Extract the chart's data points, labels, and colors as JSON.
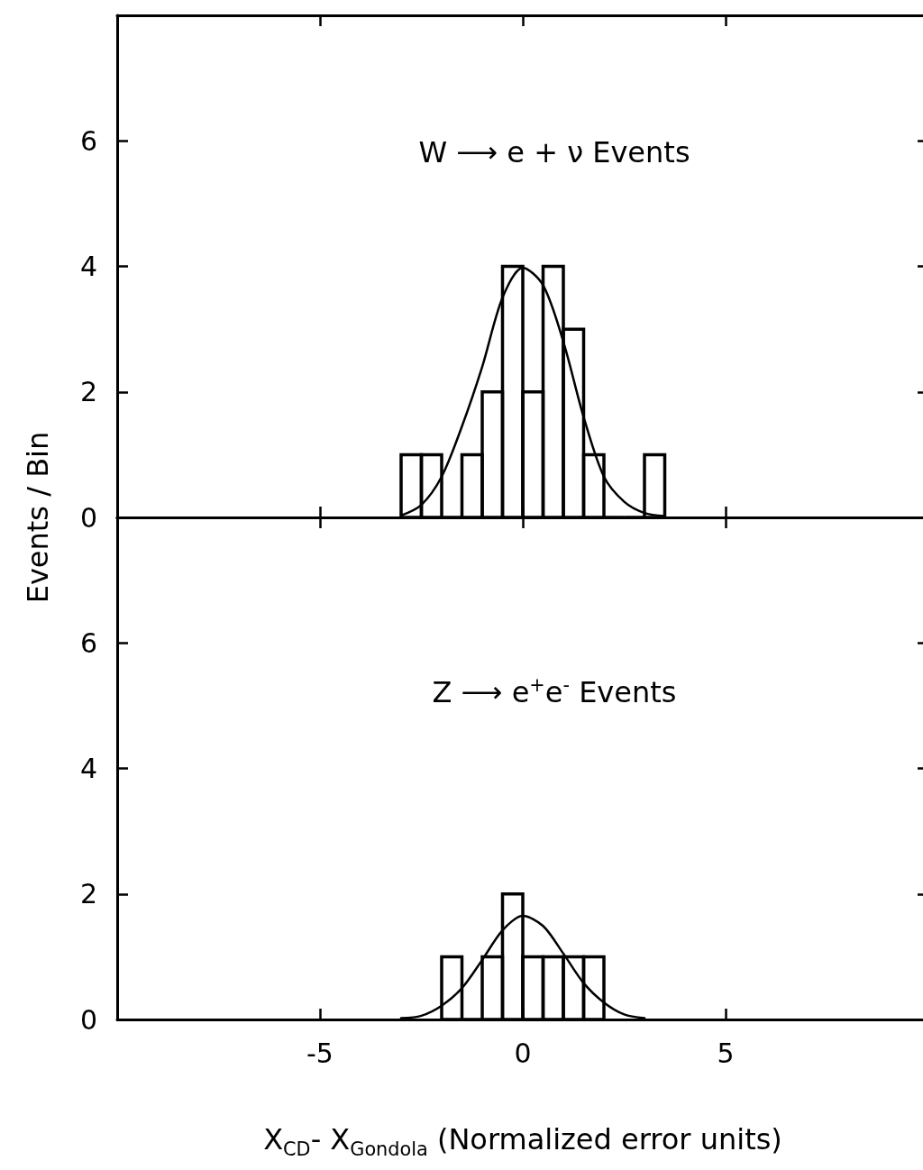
{
  "chart_data": [
    {
      "type": "histogram",
      "title": "W ⟶ e + ν  Events",
      "ylabel": "Events / Bin",
      "xlim": [
        -10,
        10
      ],
      "xticks": [
        -5,
        0,
        5
      ],
      "ylim": [
        0,
        8
      ],
      "yticks": [
        0,
        2,
        4,
        6
      ],
      "tick_labels": "y",
      "grid": false,
      "series": [
        {
          "color": "#000000",
          "bins": [
            -3,
            -2.5,
            -2,
            -1.5,
            -1,
            -0.5,
            0,
            0.5,
            1,
            1.5,
            2,
            2.5,
            3,
            3.5
          ],
          "values": [
            1,
            1,
            0,
            1,
            2,
            4,
            2,
            4,
            3,
            1,
            0,
            0,
            1
          ]
        },
        {
          "type": "line",
          "color": "#000000",
          "x": [
            -3,
            -2.5,
            -2,
            -1.5,
            -1,
            -0.5,
            0,
            0.5,
            1,
            1.5,
            2,
            2.5,
            3,
            3.5
          ],
          "values": [
            0.03,
            0.2,
            0.65,
            1.45,
            2.4,
            3.5,
            3.98,
            3.7,
            2.8,
            1.6,
            0.65,
            0.25,
            0.07,
            0.02
          ]
        }
      ]
    },
    {
      "type": "histogram",
      "title": "Z ⟶ e$^{+}$e$^{-}$ Events",
      "xlabel": "X$_{CD}$- X$_{Gondola}$ (Normalized error units)",
      "xlim": [
        -10,
        10
      ],
      "xticks": [
        -5,
        0,
        5
      ],
      "ylim": [
        0,
        8
      ],
      "yticks": [
        0,
        2,
        4,
        6
      ],
      "grid": false,
      "series": [
        {
          "color": "#000000",
          "bins": [
            -2,
            -1.5,
            -1,
            -0.5,
            0,
            0.5,
            1,
            1.5,
            2
          ],
          "values": [
            1,
            0,
            1,
            2,
            1,
            1,
            1,
            1
          ]
        },
        {
          "type": "line",
          "color": "#000000",
          "x": [
            -3,
            -2.5,
            -2,
            -1.5,
            -1,
            -0.5,
            0,
            0.5,
            1,
            1.5,
            2,
            2.5,
            3
          ],
          "values": [
            0.02,
            0.06,
            0.22,
            0.5,
            0.95,
            1.42,
            1.65,
            1.49,
            1.05,
            0.58,
            0.27,
            0.08,
            0.02
          ]
        }
      ]
    }
  ]
}
